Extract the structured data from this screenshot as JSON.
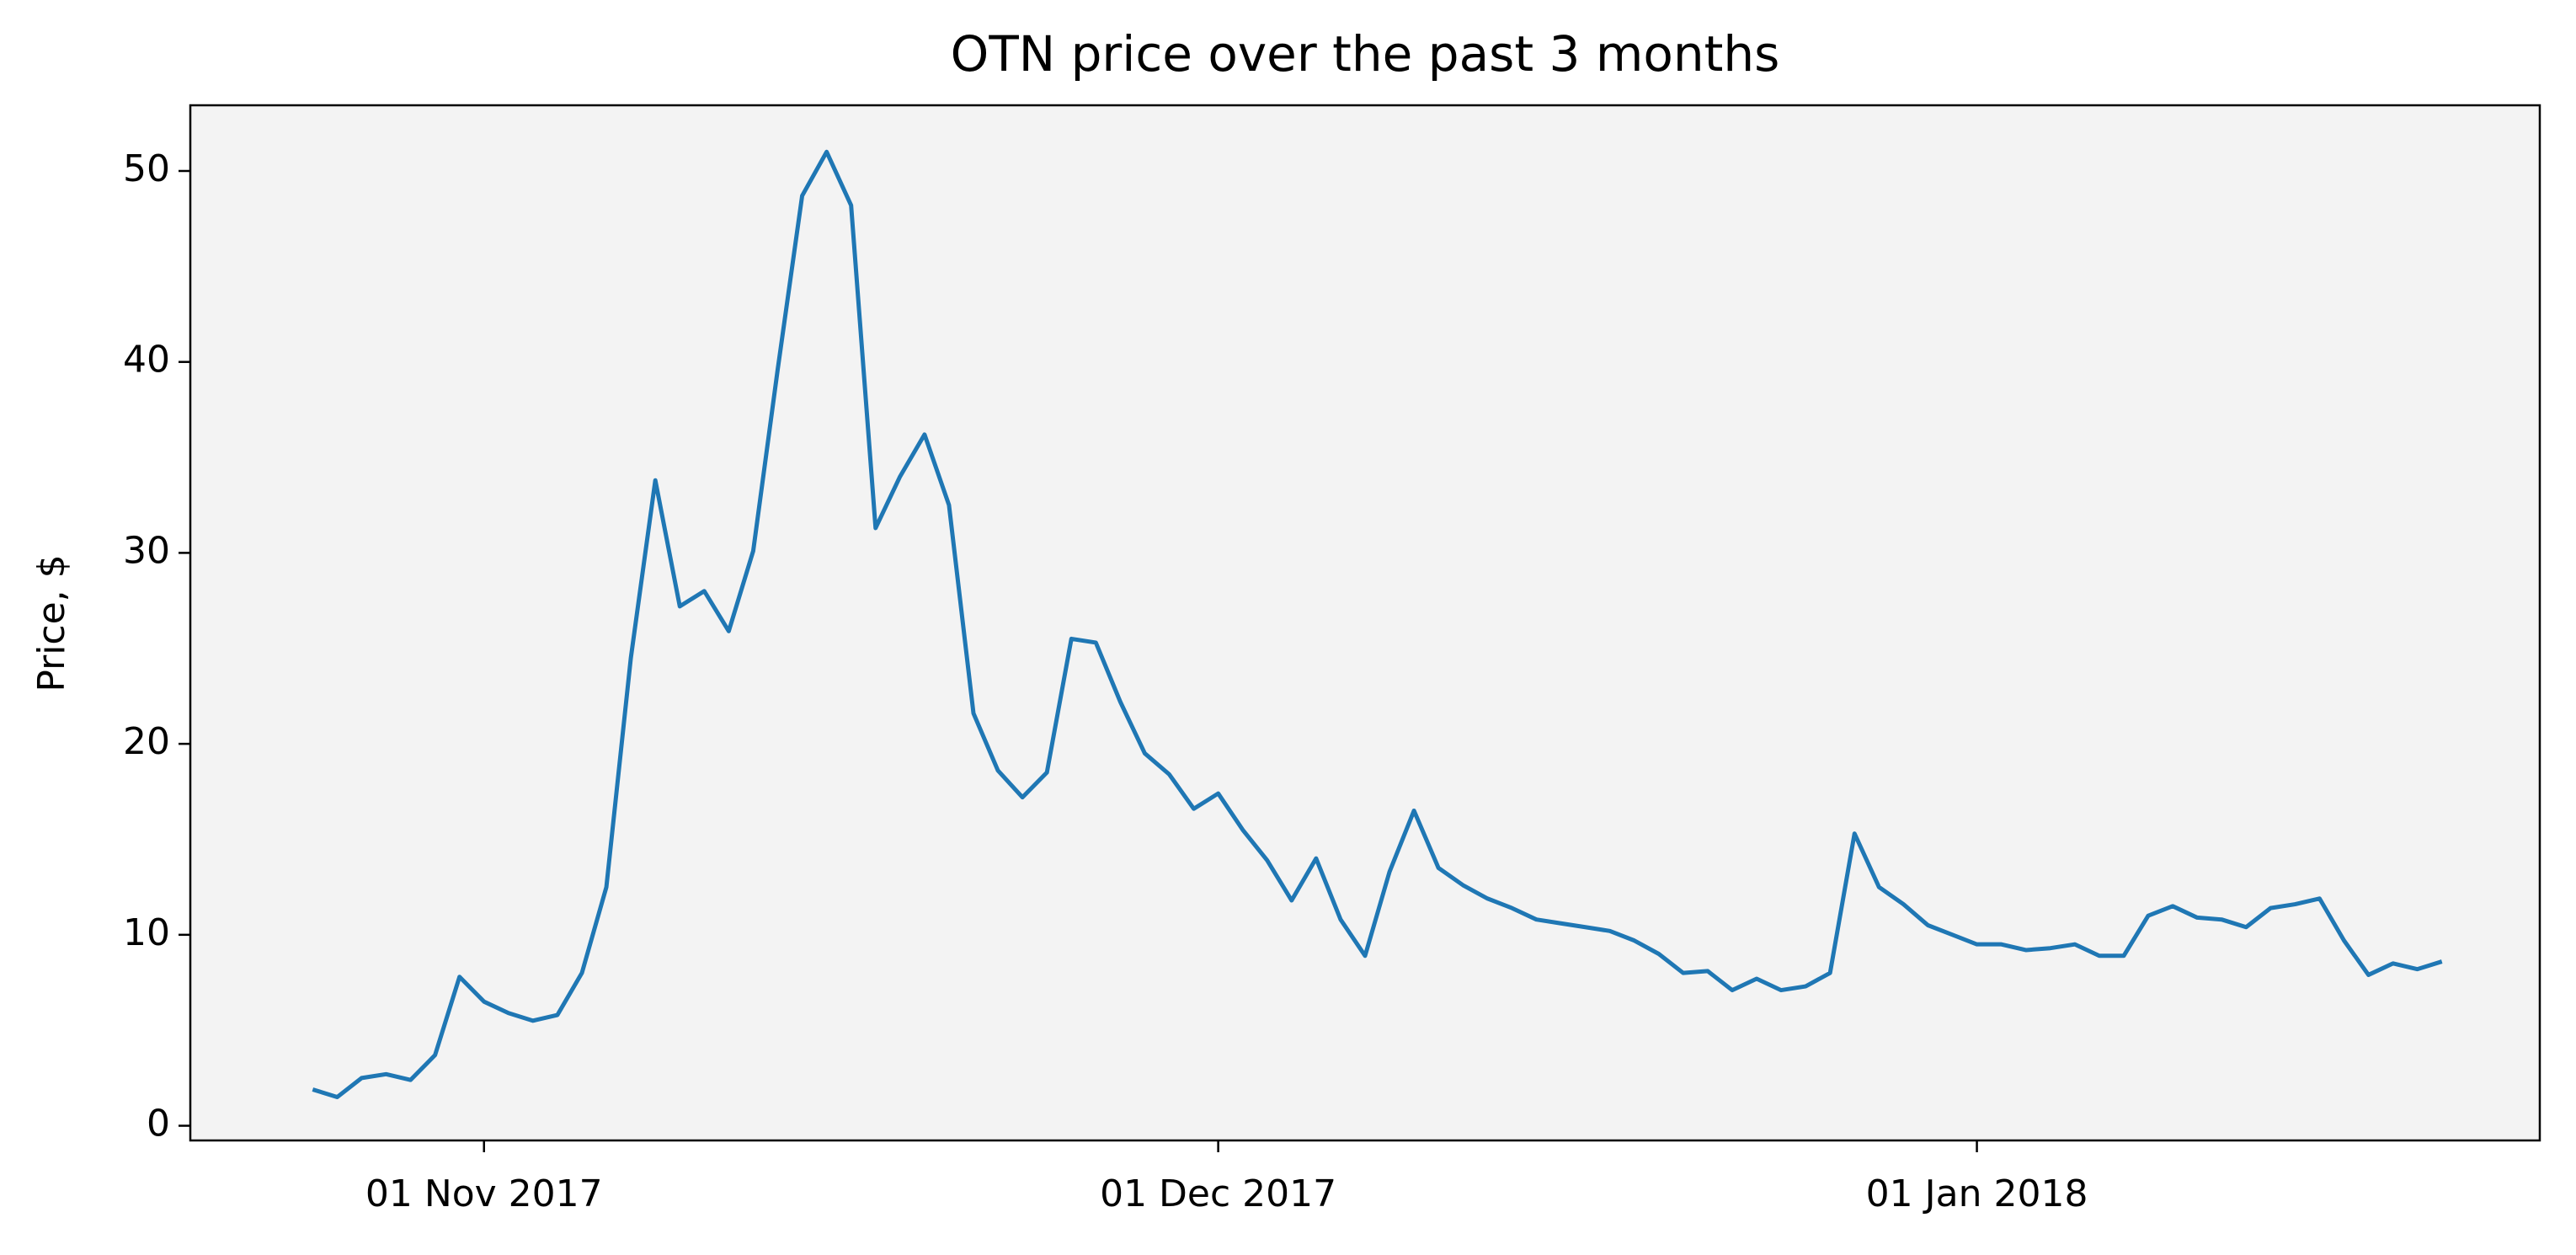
{
  "chart_data": {
    "type": "line",
    "title": "OTN price over the past 3 months",
    "y_label": "Price, $",
    "x": [
      "2017-10-25",
      "2017-10-26",
      "2017-10-27",
      "2017-10-28",
      "2017-10-29",
      "2017-10-30",
      "2017-10-31",
      "2017-11-01",
      "2017-11-02",
      "2017-11-03",
      "2017-11-04",
      "2017-11-05",
      "2017-11-06",
      "2017-11-07",
      "2017-11-08",
      "2017-11-09",
      "2017-11-10",
      "2017-11-11",
      "2017-11-12",
      "2017-11-13",
      "2017-11-14",
      "2017-11-15",
      "2017-11-16",
      "2017-11-17",
      "2017-11-18",
      "2017-11-19",
      "2017-11-20",
      "2017-11-21",
      "2017-11-22",
      "2017-11-23",
      "2017-11-24",
      "2017-11-25",
      "2017-11-26",
      "2017-11-27",
      "2017-11-28",
      "2017-11-29",
      "2017-11-30",
      "2017-12-01",
      "2017-12-02",
      "2017-12-03",
      "2017-12-04",
      "2017-12-05",
      "2017-12-06",
      "2017-12-07",
      "2017-12-08",
      "2017-12-09",
      "2017-12-10",
      "2017-12-11",
      "2017-12-12",
      "2017-12-13",
      "2017-12-14",
      "2017-12-15",
      "2017-12-16",
      "2017-12-17",
      "2017-12-18",
      "2017-12-19",
      "2017-12-20",
      "2017-12-21",
      "2017-12-22",
      "2017-12-23",
      "2017-12-24",
      "2017-12-25",
      "2017-12-26",
      "2017-12-27",
      "2017-12-28",
      "2017-12-29",
      "2017-12-30",
      "2017-12-31",
      "2018-01-01",
      "2018-01-02",
      "2018-01-03",
      "2018-01-04",
      "2018-01-05",
      "2018-01-06",
      "2018-01-07",
      "2018-01-08",
      "2018-01-09",
      "2018-01-10",
      "2018-01-11",
      "2018-01-12",
      "2018-01-13",
      "2018-01-14",
      "2018-01-15",
      "2018-01-16",
      "2018-01-17",
      "2018-01-18",
      "2018-01-19",
      "2018-01-20"
    ],
    "series": [
      {
        "name": "OTN",
        "color": "#1f77b4",
        "values": [
          1.9,
          1.5,
          2.5,
          2.7,
          2.4,
          3.7,
          7.8,
          6.5,
          5.9,
          5.5,
          5.8,
          8.0,
          12.5,
          24.5,
          33.8,
          27.2,
          28.0,
          25.9,
          30.1,
          39.6,
          48.7,
          51.0,
          48.2,
          31.3,
          34.0,
          36.2,
          32.5,
          21.6,
          18.6,
          17.2,
          18.5,
          25.5,
          25.3,
          22.2,
          19.5,
          18.4,
          16.6,
          17.4,
          15.5,
          13.9,
          11.8,
          14.0,
          10.8,
          8.9,
          13.3,
          16.5,
          13.5,
          12.6,
          11.9,
          11.4,
          10.8,
          10.6,
          10.4,
          10.2,
          9.7,
          9.0,
          8.0,
          8.1,
          7.1,
          7.7,
          7.1,
          7.3,
          8.0,
          15.3,
          12.5,
          11.6,
          10.5,
          10.0,
          9.5,
          9.5,
          9.2,
          9.3,
          9.5,
          8.9,
          8.9,
          11.0,
          11.5,
          10.9,
          10.8,
          10.4,
          11.4,
          11.6,
          11.9,
          9.7,
          7.9,
          8.5,
          8.2,
          8.6
        ]
      }
    ],
    "xlim": [
      "2017-10-20",
      "2018-01-24"
    ],
    "xticks": [
      {
        "value": "2017-11-01",
        "label": "01 Nov 2017"
      },
      {
        "value": "2017-12-01",
        "label": "01 Dec 2017"
      },
      {
        "value": "2018-01-01",
        "label": "01 Jan 2018"
      }
    ],
    "ylim": [
      -0.77,
      53.44
    ],
    "yticks": [
      0,
      10,
      20,
      30,
      40,
      50
    ],
    "background": "#f3f3f3"
  }
}
